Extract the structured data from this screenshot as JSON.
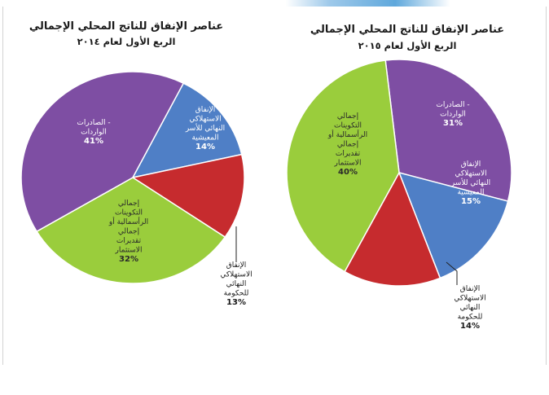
{
  "chart_data": [
    {
      "type": "pie",
      "title": "عناصر الإنفاق للناتج المحلي الإجمالي",
      "subtitle": "الربع الأول لعام ٢٠١٤",
      "slices": [
        {
          "label": "الإنفاق الاستهلاكي النهائي للأسر المعيشية",
          "label_lines": [
            "الإنفاق",
            "الاستهلاكي",
            "النهائي للأسر",
            "المعيشية"
          ],
          "value": 14,
          "value_text": "14%",
          "color": "#4f7fc6"
        },
        {
          "label": "الإنفاق الاستهلاكي النهائي للحكومة",
          "label_lines": [
            "الإنفاق",
            "الاستهلاكي",
            "النهائي",
            "للحكومة"
          ],
          "value": 13,
          "value_text": "13%",
          "color": "#c62b2e"
        },
        {
          "label": "إجمالي التكوينات الرأسمالية أو إجمالي تقديرات الاستثمار",
          "label_lines": [
            "إجمالي",
            "التكوينات",
            "الرأسمالية أو",
            "إجمالي",
            "تقديرات",
            "الاستثمار"
          ],
          "value": 32,
          "value_text": "32%",
          "color": "#9acd3c"
        },
        {
          "label": "الصادرات - الواردات",
          "label_lines": [
            "الصادرات -",
            "الواردات"
          ],
          "value": 41,
          "value_text": "41%",
          "color": "#7e4ea3"
        }
      ]
    },
    {
      "type": "pie",
      "title": "عناصر الإنفاق للناتج المحلي الإجمالي",
      "subtitle": "الربع الأول لعام ٢٠١٥",
      "slices": [
        {
          "label": "الصادرات - الواردات",
          "label_lines": [
            "الصادرات -",
            "الواردات"
          ],
          "value": 31,
          "value_text": "31%",
          "color": "#7e4ea3"
        },
        {
          "label": "الإنفاق الاستهلاكي النهائي للأسر المعيشية",
          "label_lines": [
            "الإنفاق",
            "الاستهلاكي",
            "النهائي للأسر",
            "المعيشية"
          ],
          "value": 15,
          "value_text": "15%",
          "color": "#4f7fc6"
        },
        {
          "label": "الإنفاق الاستهلاكي النهائي للحكومة",
          "label_lines": [
            "الإنفاق",
            "الاستهلاكي",
            "النهائي",
            "للحكومة"
          ],
          "value": 14,
          "value_text": "14%",
          "color": "#c62b2e"
        },
        {
          "label": "إجمالي التكوينات الرأسمالية أو إجمالي تقديرات الاستثمار",
          "label_lines": [
            "إجمالي",
            "التكوينات",
            "الرأسمالية أو",
            "إجمالي",
            "تقديرات",
            "الاستثمار"
          ],
          "value": 40,
          "value_text": "40%",
          "color": "#9acd3c"
        }
      ]
    }
  ]
}
